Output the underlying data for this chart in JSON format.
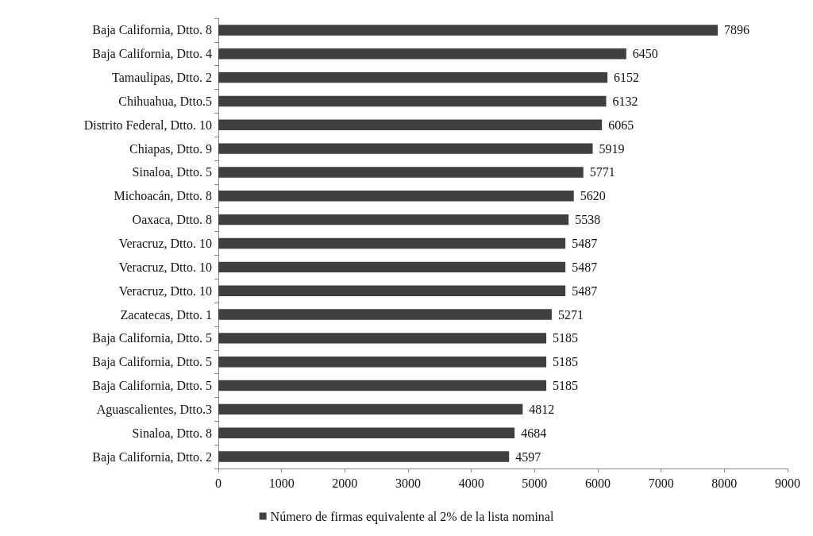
{
  "chart_data": {
    "type": "bar",
    "orientation": "horizontal",
    "categories": [
      "Baja California, Dtto. 8",
      "Baja California, Dtto. 4",
      "Tamaulipas, Dtto. 2",
      "Chihuahua, Dtto.5",
      "Distrito Federal, Dtto. 10",
      "Chiapas, Dtto. 9",
      "Sinaloa, Dtto. 5",
      "Michoacán, Dtto. 8",
      "Oaxaca, Dtto. 8",
      "Veracruz, Dtto. 10",
      "Veracruz, Dtto. 10",
      "Veracruz, Dtto. 10",
      "Zacatecas, Dtto. 1",
      "Baja California, Dtto. 5",
      "Baja California, Dtto. 5",
      "Baja California, Dtto. 5",
      "Aguascalientes, Dtto.3",
      "Sinaloa, Dtto. 8",
      "Baja California, Dtto. 2"
    ],
    "series": [
      {
        "name": "Número de firmas equivalente al 2% de la lista nominal",
        "color": "#404040",
        "values": [
          7896,
          6450,
          6152,
          6132,
          6065,
          5919,
          5771,
          5620,
          5538,
          5487,
          5487,
          5487,
          5271,
          5185,
          5185,
          5185,
          4812,
          4684,
          4597
        ]
      }
    ],
    "xlim": [
      0,
      9000
    ],
    "xticks": [
      0,
      1000,
      2000,
      3000,
      4000,
      5000,
      6000,
      7000,
      8000,
      9000
    ],
    "data_labels": true,
    "grid": false,
    "legend": "bottom"
  }
}
